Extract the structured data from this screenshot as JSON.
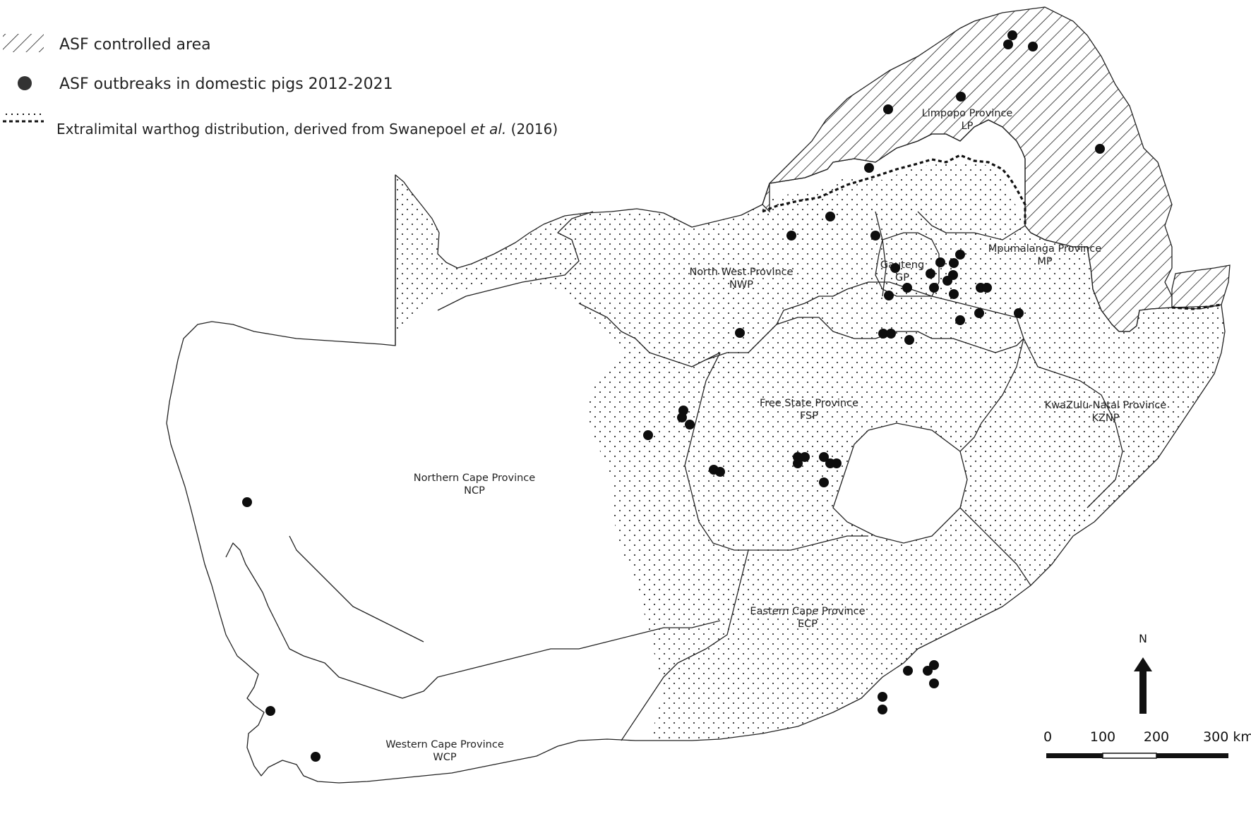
{
  "legend": {
    "asf_area": "ASF controlled area",
    "outbreaks": "ASF outbreaks in domestic pigs 2012-2021",
    "warthog_prefix": "Extralimital warthog distribution, derived from Swanepoel ",
    "warthog_italic": "et al.",
    "warthog_suffix": " (2016)"
  },
  "provinces": [
    {
      "id": "lp",
      "name": "Limpopo Province",
      "abbr": "LP"
    },
    {
      "id": "mp",
      "name": "Mpumalanga Province",
      "abbr": "MP"
    },
    {
      "id": "gp",
      "name": "Gauteng",
      "abbr": "GP"
    },
    {
      "id": "nwp",
      "name": "North West Province",
      "abbr": "NWP"
    },
    {
      "id": "fsp",
      "name": "Free State Province",
      "abbr": "FSP"
    },
    {
      "id": "kznp",
      "name": "KwaZulu-Natal Province",
      "abbr": "KZNP"
    },
    {
      "id": "ncp",
      "name": "Northern Cape Province",
      "abbr": "NCP"
    },
    {
      "id": "ecp",
      "name": "Eastern Cape Province",
      "abbr": "ECP"
    },
    {
      "id": "wcp",
      "name": "Western Cape Province",
      "abbr": "WCP"
    }
  ],
  "scale_bar": {
    "ticks": [
      "0",
      "100",
      "200"
    ],
    "end_label": "300 km"
  },
  "north_arrow": {
    "label": "N"
  },
  "colors": {
    "outline": "#222222",
    "outbreak_dot": "#0d0d0d",
    "background": "#ffffff"
  }
}
